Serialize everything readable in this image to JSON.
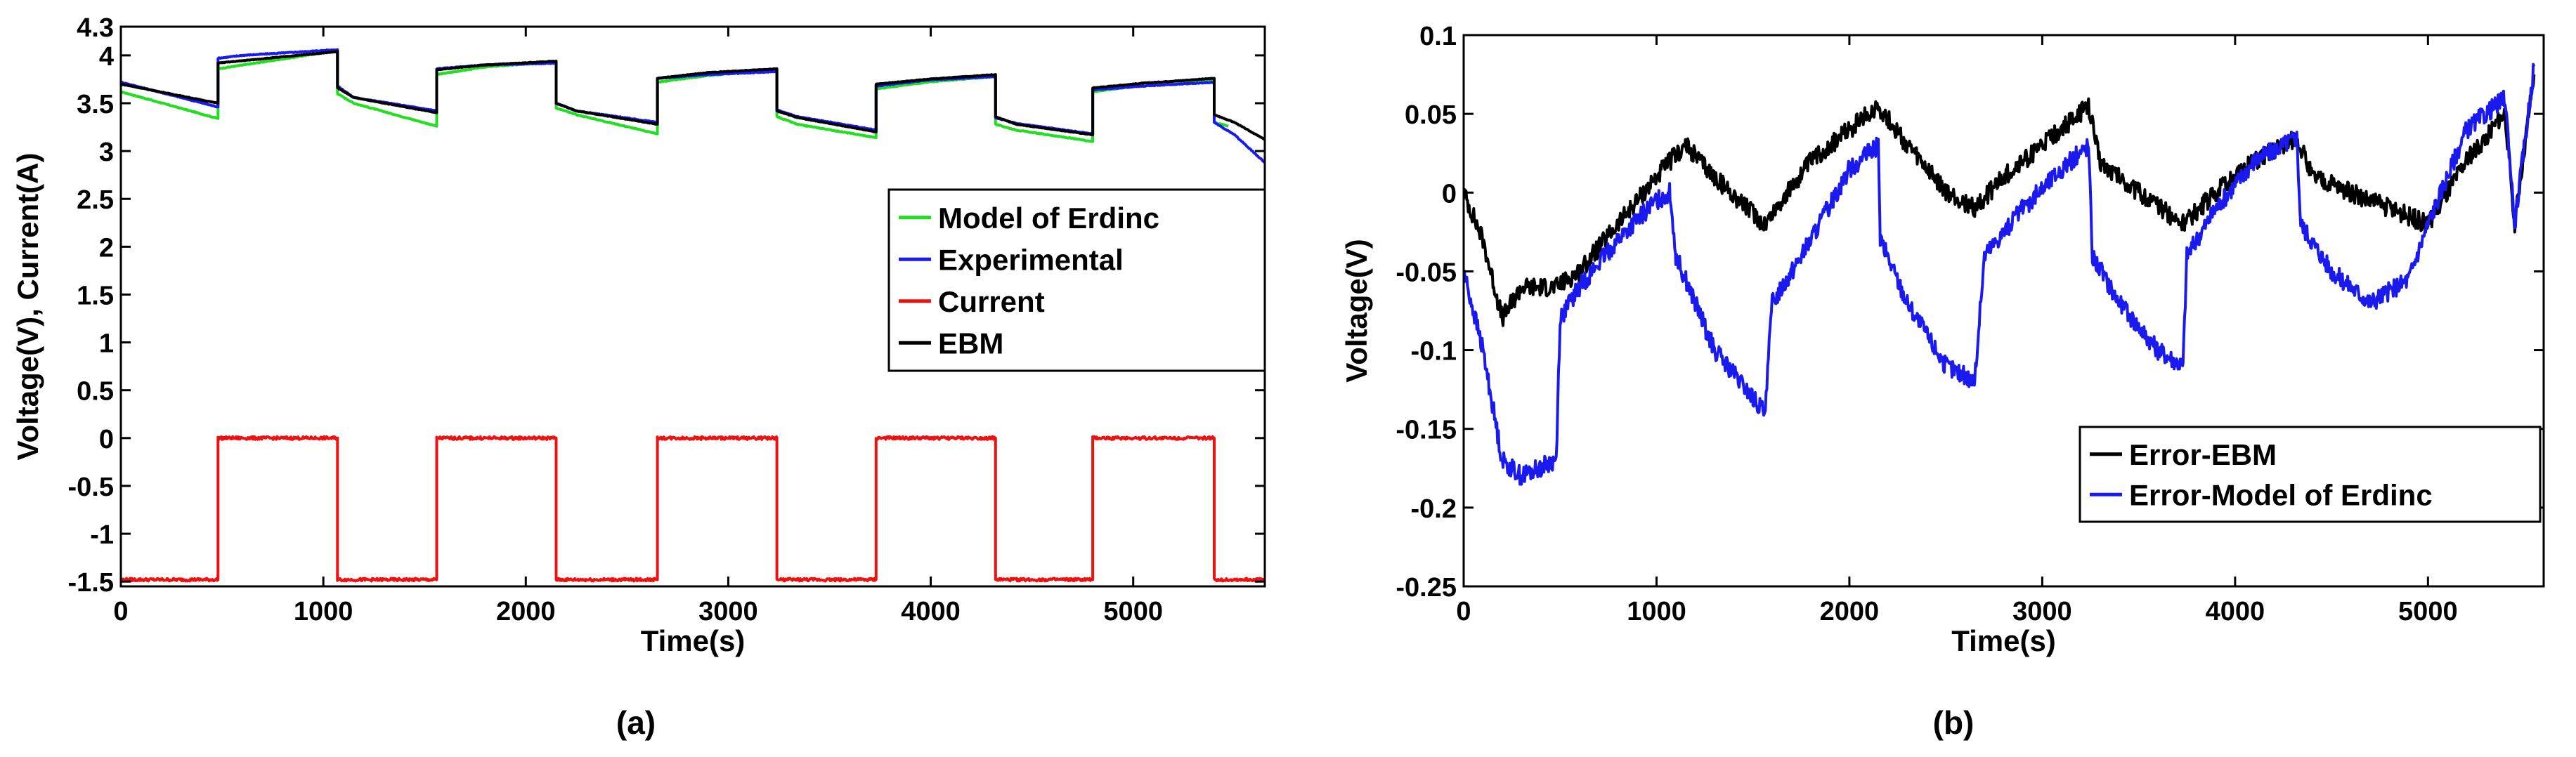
{
  "colors": {
    "green": "#22dd22",
    "blue": "#1a1aee",
    "red": "#ee1111",
    "black": "#000000"
  },
  "chart_data": [
    {
      "type": "line",
      "panel_label": "(a)",
      "xlabel": "Time(s)",
      "ylabel": "Voltage(V), Current(A)",
      "xlim": [
        0,
        5650
      ],
      "ylim": [
        -1.55,
        4.3
      ],
      "xticks": [
        0,
        1000,
        2000,
        3000,
        4000,
        5000
      ],
      "xtick_labels": [
        "0",
        "1000",
        "2000",
        "3000",
        "4000",
        "5000"
      ],
      "yticks": [
        -1.5,
        -1,
        -0.5,
        0,
        0.5,
        1,
        1.5,
        2,
        2.5,
        3,
        3.5,
        4,
        4.3
      ],
      "ytick_labels": [
        "-1.5",
        "-1",
        "-0.5",
        "0",
        "0.5",
        "1",
        "1.5",
        "2",
        "2.5",
        "3",
        "3.5",
        "4",
        "4.3"
      ],
      "legend_position": "center-right",
      "series": [
        {
          "name": "Model of Erdinc",
          "color_key": "green",
          "x": [
            0,
            480,
            480,
            1070,
            1070,
            1150,
            1560,
            1560,
            1800,
            2150,
            2150,
            2250,
            2650,
            2650,
            2900,
            3240,
            3240,
            3340,
            3730,
            3730,
            3980,
            4320,
            4320,
            4420,
            4800,
            4800,
            5050,
            5400,
            5400,
            5470
          ],
          "y": [
            3.62,
            3.34,
            3.86,
            4.05,
            3.6,
            3.5,
            3.26,
            3.8,
            3.88,
            3.93,
            3.45,
            3.38,
            3.18,
            3.72,
            3.79,
            3.85,
            3.36,
            3.28,
            3.14,
            3.65,
            3.72,
            3.78,
            3.28,
            3.22,
            3.1,
            3.62,
            3.69,
            3.75,
            3.3,
            3.26
          ]
        },
        {
          "name": "Experimental",
          "color_key": "blue",
          "x": [
            0,
            480,
            480,
            600,
            1070,
            1070,
            1150,
            1560,
            1560,
            1800,
            2150,
            2150,
            2250,
            2650,
            2650,
            2900,
            3240,
            3240,
            3340,
            3730,
            3730,
            3980,
            4320,
            4320,
            4420,
            4800,
            4800,
            5050,
            5400,
            5400,
            5500,
            5650
          ],
          "y": [
            3.72,
            3.46,
            3.97,
            4.0,
            4.06,
            3.68,
            3.56,
            3.42,
            3.86,
            3.9,
            3.92,
            3.5,
            3.42,
            3.3,
            3.76,
            3.8,
            3.83,
            3.43,
            3.36,
            3.22,
            3.68,
            3.74,
            3.78,
            3.35,
            3.29,
            3.18,
            3.64,
            3.68,
            3.72,
            3.3,
            3.17,
            2.88
          ]
        },
        {
          "name": "Current",
          "color_key": "red",
          "x": [
            0,
            480,
            480,
            1070,
            1070,
            1560,
            1560,
            2150,
            2150,
            2650,
            2650,
            3240,
            3240,
            3730,
            3730,
            4320,
            4320,
            4800,
            4800,
            5400,
            5400,
            5650
          ],
          "y": [
            -1.48,
            -1.48,
            0,
            0,
            -1.48,
            -1.48,
            0,
            0,
            -1.48,
            -1.48,
            0,
            0,
            -1.48,
            -1.48,
            0,
            0,
            -1.48,
            -1.48,
            0,
            0,
            -1.48,
            -1.48
          ]
        },
        {
          "name": "EBM",
          "color_key": "black",
          "x": [
            0,
            480,
            480,
            1070,
            1070,
            1150,
            1560,
            1560,
            1800,
            2150,
            2150,
            2250,
            2650,
            2650,
            2900,
            3240,
            3240,
            3340,
            3730,
            3730,
            3980,
            4320,
            4320,
            4420,
            4800,
            4800,
            5050,
            5400,
            5400,
            5500,
            5650
          ],
          "y": [
            3.7,
            3.5,
            3.92,
            4.04,
            3.66,
            3.56,
            3.4,
            3.85,
            3.9,
            3.94,
            3.5,
            3.42,
            3.28,
            3.76,
            3.82,
            3.86,
            3.42,
            3.35,
            3.2,
            3.7,
            3.75,
            3.8,
            3.36,
            3.28,
            3.17,
            3.66,
            3.71,
            3.76,
            3.38,
            3.3,
            3.12
          ]
        }
      ]
    },
    {
      "type": "line",
      "panel_label": "(b)",
      "xlabel": "Time(s)",
      "ylabel": "Voltage(V)",
      "xlim": [
        0,
        5600
      ],
      "ylim": [
        -0.25,
        0.1
      ],
      "xticks": [
        0,
        1000,
        2000,
        3000,
        4000,
        5000
      ],
      "xtick_labels": [
        "0",
        "1000",
        "2000",
        "3000",
        "4000",
        "5000"
      ],
      "yticks": [
        -0.25,
        -0.2,
        -0.15,
        -0.1,
        -0.05,
        0,
        0.05,
        0.1
      ],
      "ytick_labels": [
        "-0.25",
        "-0.2",
        "-0.15",
        "-0.1",
        "-0.05",
        "0",
        "0.05",
        "0.1"
      ],
      "legend_position": "bottom-right",
      "series": [
        {
          "name": "Error-EBM",
          "color_key": "black",
          "x": [
            0,
            100,
            200,
            300,
            480,
            600,
            800,
            1000,
            1070,
            1150,
            1300,
            1560,
            1800,
            2000,
            2150,
            2300,
            2500,
            2650,
            2800,
            3000,
            3240,
            3300,
            3500,
            3730,
            3900,
            4100,
            4320,
            4400,
            4600,
            4800,
            5000,
            5200,
            5400,
            5450,
            5550
          ],
          "y": [
            0.0,
            -0.03,
            -0.08,
            -0.06,
            -0.06,
            -0.05,
            -0.02,
            0.01,
            0.02,
            0.03,
            0.01,
            -0.02,
            0.02,
            0.04,
            0.055,
            0.03,
            0.0,
            -0.01,
            0.01,
            0.03,
            0.055,
            0.02,
            0.0,
            -0.02,
            0.0,
            0.02,
            0.035,
            0.01,
            0.0,
            -0.01,
            -0.02,
            0.02,
            0.05,
            -0.02,
            0.075
          ]
        },
        {
          "name": "Error-Model of Erdinc",
          "color_key": "blue",
          "x": [
            0,
            100,
            200,
            300,
            480,
            500,
            600,
            800,
            1000,
            1070,
            1100,
            1300,
            1560,
            1600,
            1800,
            2000,
            2150,
            2160,
            2300,
            2500,
            2650,
            2700,
            2900,
            3100,
            3240,
            3260,
            3400,
            3600,
            3730,
            3750,
            3900,
            4100,
            4320,
            4340,
            4500,
            4700,
            4900,
            5000,
            5200,
            5400,
            5450,
            5550
          ],
          "y": [
            -0.05,
            -0.1,
            -0.17,
            -0.18,
            -0.17,
            -0.08,
            -0.06,
            -0.03,
            -0.005,
            0.0,
            -0.04,
            -0.1,
            -0.14,
            -0.07,
            -0.03,
            0.015,
            0.03,
            -0.03,
            -0.07,
            -0.11,
            -0.12,
            -0.04,
            -0.01,
            0.015,
            0.03,
            -0.04,
            -0.07,
            -0.1,
            -0.11,
            -0.04,
            -0.01,
            0.02,
            0.035,
            -0.02,
            -0.05,
            -0.07,
            -0.055,
            -0.02,
            0.04,
            0.06,
            -0.02,
            0.08
          ]
        }
      ]
    }
  ]
}
